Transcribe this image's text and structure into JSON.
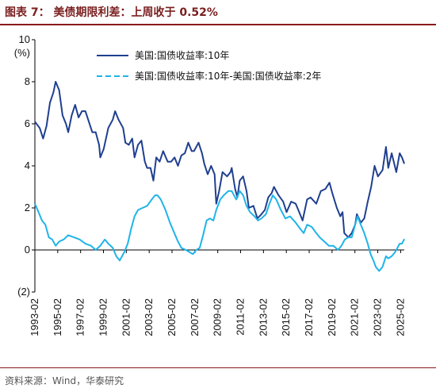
{
  "header": {
    "title": "图表 7：  美债期限利差：上周收于 0.52%"
  },
  "footer": {
    "source": "资料来源：Wind，华泰研究"
  },
  "colors": {
    "series_10y": "#1f3f8f",
    "series_spread": "#1fb4e8",
    "rule": "#8b1a1a"
  },
  "chart_data": {
    "type": "line",
    "title": "美债期限利差：上周收于 0.52%",
    "ylabel": "(%)",
    "ylim": [
      -2,
      10
    ],
    "yticks": [
      -2,
      0,
      2,
      4,
      6,
      8,
      10
    ],
    "ytick_labels": [
      "(2)",
      "0",
      "2",
      "4",
      "6",
      "8",
      "10"
    ],
    "xlim": [
      1993.08,
      2025.4
    ],
    "xticks": [
      1993.08,
      1995.08,
      1997.08,
      1999.08,
      2001.08,
      2003.08,
      2005.08,
      2007.08,
      2009.08,
      2011.08,
      2013.08,
      2015.08,
      2017.08,
      2019.08,
      2021.08,
      2023.08,
      2025.08
    ],
    "xtick_labels": [
      "1993-02",
      "1995-02",
      "1997-02",
      "1999-02",
      "2001-02",
      "2003-02",
      "2005-02",
      "2007-02",
      "2009-02",
      "2011-02",
      "2013-02",
      "2015-02",
      "2017-02",
      "2019-02",
      "2021-02",
      "2023-02",
      "2025-02"
    ],
    "grid": false,
    "legend_position": "top-right",
    "series": [
      {
        "name": "美国:国债收益率:10年",
        "style": "solid",
        "points": [
          [
            1993.08,
            6.1
          ],
          [
            1993.5,
            5.8
          ],
          [
            1993.8,
            5.3
          ],
          [
            1994.1,
            5.9
          ],
          [
            1994.4,
            7.0
          ],
          [
            1994.7,
            7.5
          ],
          [
            1994.9,
            8.0
          ],
          [
            1995.2,
            7.6
          ],
          [
            1995.5,
            6.4
          ],
          [
            1995.8,
            6.0
          ],
          [
            1996.0,
            5.6
          ],
          [
            1996.3,
            6.4
          ],
          [
            1996.6,
            6.9
          ],
          [
            1996.9,
            6.3
          ],
          [
            1997.2,
            6.6
          ],
          [
            1997.5,
            6.6
          ],
          [
            1997.8,
            6.1
          ],
          [
            1998.1,
            5.6
          ],
          [
            1998.4,
            5.6
          ],
          [
            1998.7,
            5.0
          ],
          [
            1998.8,
            4.4
          ],
          [
            1999.1,
            4.8
          ],
          [
            1999.5,
            5.8
          ],
          [
            1999.9,
            6.2
          ],
          [
            2000.1,
            6.6
          ],
          [
            2000.4,
            6.2
          ],
          [
            2000.8,
            5.8
          ],
          [
            2001.0,
            5.1
          ],
          [
            2001.3,
            5.0
          ],
          [
            2001.6,
            5.3
          ],
          [
            2001.8,
            4.4
          ],
          [
            2002.1,
            5.0
          ],
          [
            2002.4,
            5.2
          ],
          [
            2002.7,
            4.2
          ],
          [
            2002.9,
            3.9
          ],
          [
            2003.2,
            3.9
          ],
          [
            2003.45,
            3.3
          ],
          [
            2003.7,
            4.4
          ],
          [
            2004.0,
            4.2
          ],
          [
            2004.3,
            4.7
          ],
          [
            2004.7,
            4.2
          ],
          [
            2005.0,
            4.2
          ],
          [
            2005.3,
            4.4
          ],
          [
            2005.6,
            4.0
          ],
          [
            2005.9,
            4.5
          ],
          [
            2006.2,
            4.6
          ],
          [
            2006.5,
            5.1
          ],
          [
            2006.8,
            4.7
          ],
          [
            2007.0,
            4.7
          ],
          [
            2007.4,
            5.1
          ],
          [
            2007.7,
            4.6
          ],
          [
            2007.9,
            4.1
          ],
          [
            2008.2,
            3.6
          ],
          [
            2008.5,
            4.0
          ],
          [
            2008.8,
            3.6
          ],
          [
            2008.95,
            2.2
          ],
          [
            2009.2,
            2.8
          ],
          [
            2009.5,
            3.7
          ],
          [
            2009.9,
            3.5
          ],
          [
            2010.2,
            3.7
          ],
          [
            2010.3,
            3.9
          ],
          [
            2010.6,
            2.9
          ],
          [
            2010.8,
            2.5
          ],
          [
            2011.0,
            3.3
          ],
          [
            2011.3,
            3.5
          ],
          [
            2011.6,
            2.8
          ],
          [
            2011.8,
            2.0
          ],
          [
            2012.2,
            2.1
          ],
          [
            2012.55,
            1.5
          ],
          [
            2012.9,
            1.7
          ],
          [
            2013.2,
            1.9
          ],
          [
            2013.5,
            2.5
          ],
          [
            2013.8,
            2.7
          ],
          [
            2014.0,
            3.0
          ],
          [
            2014.4,
            2.6
          ],
          [
            2014.8,
            2.3
          ],
          [
            2015.1,
            1.8
          ],
          [
            2015.5,
            2.3
          ],
          [
            2015.9,
            2.2
          ],
          [
            2016.2,
            1.8
          ],
          [
            2016.5,
            1.4
          ],
          [
            2016.9,
            2.4
          ],
          [
            2017.2,
            2.5
          ],
          [
            2017.7,
            2.2
          ],
          [
            2018.1,
            2.8
          ],
          [
            2018.5,
            2.9
          ],
          [
            2018.85,
            3.2
          ],
          [
            2019.1,
            2.7
          ],
          [
            2019.5,
            2.0
          ],
          [
            2019.8,
            1.6
          ],
          [
            2020.0,
            1.8
          ],
          [
            2020.15,
            0.8
          ],
          [
            2020.5,
            0.6
          ],
          [
            2020.8,
            0.8
          ],
          [
            2021.1,
            1.2
          ],
          [
            2021.25,
            1.7
          ],
          [
            2021.6,
            1.3
          ],
          [
            2021.9,
            1.5
          ],
          [
            2022.2,
            2.3
          ],
          [
            2022.5,
            3.0
          ],
          [
            2022.8,
            4.0
          ],
          [
            2023.1,
            3.5
          ],
          [
            2023.5,
            3.8
          ],
          [
            2023.8,
            4.9
          ],
          [
            2024.0,
            3.9
          ],
          [
            2024.3,
            4.6
          ],
          [
            2024.7,
            3.7
          ],
          [
            2025.0,
            4.6
          ],
          [
            2025.2,
            4.4
          ],
          [
            2025.4,
            4.1
          ]
        ]
      },
      {
        "name": "美国:国债收益率:10年-美国:国债收益率:2年",
        "style": "dashed",
        "points": [
          [
            1993.08,
            2.2
          ],
          [
            1993.4,
            1.8
          ],
          [
            1993.7,
            1.4
          ],
          [
            1994.0,
            1.2
          ],
          [
            1994.3,
            0.6
          ],
          [
            1994.6,
            0.5
          ],
          [
            1994.9,
            0.2
          ],
          [
            1995.2,
            0.4
          ],
          [
            1995.6,
            0.5
          ],
          [
            1996.0,
            0.7
          ],
          [
            1996.5,
            0.6
          ],
          [
            1997.0,
            0.5
          ],
          [
            1997.5,
            0.3
          ],
          [
            1998.0,
            0.2
          ],
          [
            1998.4,
            0.0
          ],
          [
            1998.8,
            0.2
          ],
          [
            1999.2,
            0.5
          ],
          [
            1999.5,
            0.3
          ],
          [
            1999.9,
            0.1
          ],
          [
            2000.2,
            -0.3
          ],
          [
            2000.5,
            -0.5
          ],
          [
            2000.9,
            -0.1
          ],
          [
            2001.2,
            0.3
          ],
          [
            2001.5,
            1.0
          ],
          [
            2001.8,
            1.6
          ],
          [
            2002.1,
            1.9
          ],
          [
            2002.5,
            2.0
          ],
          [
            2002.9,
            2.1
          ],
          [
            2003.3,
            2.4
          ],
          [
            2003.6,
            2.6
          ],
          [
            2003.8,
            2.6
          ],
          [
            2004.1,
            2.4
          ],
          [
            2004.5,
            1.9
          ],
          [
            2004.9,
            1.3
          ],
          [
            2005.2,
            0.9
          ],
          [
            2005.6,
            0.4
          ],
          [
            2005.9,
            0.1
          ],
          [
            2006.3,
            0.0
          ],
          [
            2006.6,
            -0.1
          ],
          [
            2006.9,
            -0.2
          ],
          [
            2007.2,
            0.0
          ],
          [
            2007.5,
            0.1
          ],
          [
            2007.8,
            0.7
          ],
          [
            2008.1,
            1.4
          ],
          [
            2008.4,
            1.5
          ],
          [
            2008.7,
            1.4
          ],
          [
            2008.95,
            1.9
          ],
          [
            2009.3,
            2.4
          ],
          [
            2009.6,
            2.6
          ],
          [
            2010.0,
            2.8
          ],
          [
            2010.3,
            2.8
          ],
          [
            2010.7,
            2.4
          ],
          [
            2011.0,
            2.8
          ],
          [
            2011.3,
            2.6
          ],
          [
            2011.6,
            2.1
          ],
          [
            2011.9,
            1.8
          ],
          [
            2012.3,
            1.6
          ],
          [
            2012.6,
            1.4
          ],
          [
            2012.9,
            1.5
          ],
          [
            2013.3,
            1.7
          ],
          [
            2013.6,
            2.2
          ],
          [
            2013.9,
            2.6
          ],
          [
            2014.2,
            2.4
          ],
          [
            2014.6,
            1.9
          ],
          [
            2015.0,
            1.5
          ],
          [
            2015.4,
            1.6
          ],
          [
            2015.9,
            1.3
          ],
          [
            2016.3,
            1.0
          ],
          [
            2016.6,
            0.8
          ],
          [
            2016.9,
            1.2
          ],
          [
            2017.3,
            1.1
          ],
          [
            2017.7,
            0.8
          ],
          [
            2018.0,
            0.6
          ],
          [
            2018.4,
            0.4
          ],
          [
            2018.8,
            0.2
          ],
          [
            2019.2,
            0.2
          ],
          [
            2019.6,
            0.0
          ],
          [
            2019.9,
            0.2
          ],
          [
            2020.2,
            0.5
          ],
          [
            2020.5,
            0.6
          ],
          [
            2020.8,
            0.6
          ],
          [
            2021.1,
            1.2
          ],
          [
            2021.3,
            1.6
          ],
          [
            2021.6,
            1.2
          ],
          [
            2021.9,
            0.8
          ],
          [
            2022.2,
            0.3
          ],
          [
            2022.45,
            -0.2
          ],
          [
            2022.7,
            -0.5
          ],
          [
            2022.9,
            -0.8
          ],
          [
            2023.2,
            -1.0
          ],
          [
            2023.5,
            -0.8
          ],
          [
            2023.8,
            -0.3
          ],
          [
            2024.0,
            -0.4
          ],
          [
            2024.3,
            -0.3
          ],
          [
            2024.6,
            -0.1
          ],
          [
            2024.8,
            0.1
          ],
          [
            2025.0,
            0.3
          ],
          [
            2025.2,
            0.3
          ],
          [
            2025.4,
            0.52
          ]
        ]
      }
    ]
  }
}
